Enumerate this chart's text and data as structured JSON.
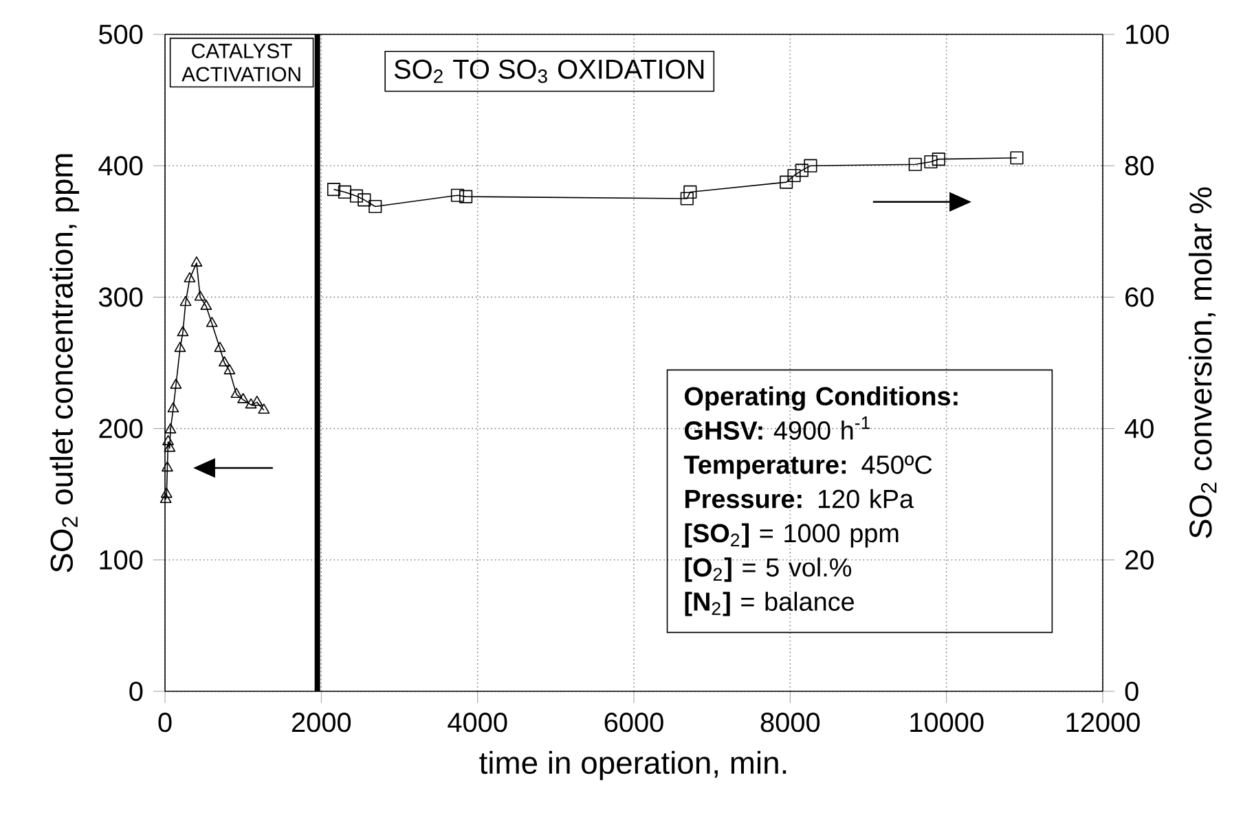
{
  "chart_data": {
    "type": "line",
    "xlabel": "time in operation, min.",
    "ylabel": "SO$_{2}$ outlet concentration, ppm",
    "y2label": "SO$_{2}$ conversion, molar %",
    "xlim": [
      0,
      12000
    ],
    "xticks": [
      0,
      2000,
      4000,
      6000,
      8000,
      10000,
      12000
    ],
    "ylim": [
      0,
      500
    ],
    "yticks": [
      0,
      100,
      200,
      300,
      400,
      500
    ],
    "y2lim": [
      0,
      100
    ],
    "y2ticks": [
      0,
      20,
      40,
      60,
      80,
      100
    ],
    "grid": true,
    "line_style": "solid",
    "ref_lines": [
      {
        "axis": "x",
        "value": 1950,
        "color": "#000000"
      }
    ],
    "annotations": [
      "CATALYST ACTIVATION",
      "SO$_{2}$ TO SO$_{3}$ OXIDATION",
      "**Operating Conditions:**",
      "**GHSV:** 4900 h$^{-1}$",
      "**Temperature:** 450ºC",
      "**Pressure:** 120 kPa",
      "**[SO**$_{2}$**]** = 1000 ppm",
      "**[O**$_{2}$**]** = 5 vol.%",
      "**[N**$_{2}$**]** = balance"
    ],
    "series": [
      {
        "color": "#000000",
        "marker": "triangle",
        "x": [
          10,
          20,
          30,
          40,
          60,
          70,
          105,
          140,
          193,
          228,
          264,
          316,
          404,
          450,
          527,
          600,
          703,
          760,
          826,
          914,
          1000,
          1100,
          1177,
          1265
        ],
        "values": [
          146,
          150,
          170,
          190,
          185,
          199,
          215,
          233,
          261,
          273,
          296,
          314,
          326,
          300,
          293,
          280,
          261,
          250,
          244,
          226,
          222,
          218,
          220,
          214
        ]
      },
      {
        "color": "#000000",
        "marker": "square",
        "axis": "y2",
        "x": [
          2160,
          2300,
          2450,
          2550,
          2690,
          3743,
          3850,
          6680,
          6720,
          7950,
          8050,
          8150,
          8260,
          9600,
          9800,
          9900,
          10900
        ],
        "values": [
          76.4,
          76,
          75.4,
          74.8,
          73.8,
          75.5,
          75.3,
          75,
          76,
          77.5,
          78.5,
          79.3,
          80,
          80.2,
          80.6,
          81,
          81.2
        ]
      }
    ]
  }
}
